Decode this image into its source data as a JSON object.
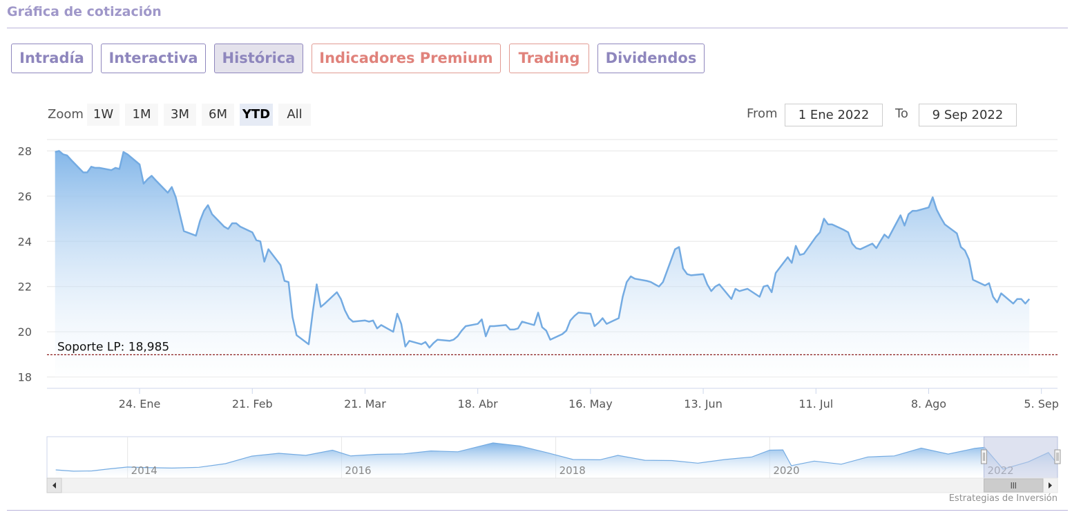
{
  "title": "Gráfica de cotización",
  "tabs": [
    {
      "label": "Intradía",
      "active": false,
      "color": "#8e86bd"
    },
    {
      "label": "Interactiva",
      "active": false,
      "color": "#8e86bd"
    },
    {
      "label": "Histórica",
      "active": true,
      "color": "#8e86bd"
    },
    {
      "label": "Indicadores Premium",
      "active": false,
      "color": "#e0827b"
    },
    {
      "label": "Trading",
      "active": false,
      "color": "#e0827b"
    },
    {
      "label": "Dividendos",
      "active": false,
      "color": "#8e86bd"
    }
  ],
  "zoom": {
    "label": "Zoom",
    "buttons": [
      "1W",
      "1M",
      "3M",
      "6M",
      "YTD",
      "All"
    ],
    "selected": "YTD"
  },
  "range": {
    "from_label": "From",
    "from_value": "1 Ene 2022",
    "to_label": "To",
    "to_value": "9 Sep 2022"
  },
  "credit": "Estrategias de Inversión",
  "colors": {
    "line": "#74abe2",
    "support_line": "#8b1a1a",
    "navigator_mask": "#c3cbe3"
  },
  "chart_data": {
    "type": "area",
    "x_start": "2022-01-01",
    "x_end": "2022-09-09",
    "ylim": [
      17.5,
      28.5
    ],
    "yticks": [
      18,
      20,
      22,
      24,
      26,
      28
    ],
    "xticks": [
      {
        "date": "2022-01-24",
        "label": "24. Ene"
      },
      {
        "date": "2022-02-21",
        "label": "21. Feb"
      },
      {
        "date": "2022-03-21",
        "label": "21. Mar"
      },
      {
        "date": "2022-04-18",
        "label": "18. Abr"
      },
      {
        "date": "2022-05-16",
        "label": "16. May"
      },
      {
        "date": "2022-06-13",
        "label": "13. Jun"
      },
      {
        "date": "2022-07-11",
        "label": "11. Jul"
      },
      {
        "date": "2022-08-08",
        "label": "8. Ago"
      },
      {
        "date": "2022-09-05",
        "label": "5. Sep"
      }
    ],
    "support": {
      "value": 18.985,
      "label": "Soporte LP: 18,985"
    },
    "series": [
      {
        "points": [
          [
            "2022-01-03",
            27.95
          ],
          [
            "2022-01-04",
            28.0
          ],
          [
            "2022-01-05",
            27.85
          ],
          [
            "2022-01-06",
            27.8
          ],
          [
            "2022-01-07",
            27.6
          ],
          [
            "2022-01-10",
            27.05
          ],
          [
            "2022-01-11",
            27.05
          ],
          [
            "2022-01-12",
            27.3
          ],
          [
            "2022-01-13",
            27.25
          ],
          [
            "2022-01-14",
            27.25
          ],
          [
            "2022-01-17",
            27.15
          ],
          [
            "2022-01-18",
            27.25
          ],
          [
            "2022-01-19",
            27.2
          ],
          [
            "2022-01-20",
            27.95
          ],
          [
            "2022-01-21",
            27.85
          ],
          [
            "2022-01-24",
            27.4
          ],
          [
            "2022-01-25",
            26.55
          ],
          [
            "2022-01-26",
            26.75
          ],
          [
            "2022-01-27",
            26.9
          ],
          [
            "2022-01-28",
            26.7
          ],
          [
            "2022-01-31",
            26.15
          ],
          [
            "2022-02-01",
            26.4
          ],
          [
            "2022-02-02",
            25.95
          ],
          [
            "2022-02-03",
            25.2
          ],
          [
            "2022-02-04",
            24.45
          ],
          [
            "2022-02-07",
            24.25
          ],
          [
            "2022-02-08",
            24.9
          ],
          [
            "2022-02-09",
            25.35
          ],
          [
            "2022-02-10",
            25.6
          ],
          [
            "2022-02-11",
            25.2
          ],
          [
            "2022-02-14",
            24.65
          ],
          [
            "2022-02-15",
            24.55
          ],
          [
            "2022-02-16",
            24.8
          ],
          [
            "2022-02-17",
            24.8
          ],
          [
            "2022-02-18",
            24.65
          ],
          [
            "2022-02-21",
            24.4
          ],
          [
            "2022-02-22",
            24.05
          ],
          [
            "2022-02-23",
            24.0
          ],
          [
            "2022-02-24",
            23.1
          ],
          [
            "2022-02-25",
            23.65
          ],
          [
            "2022-02-28",
            22.95
          ],
          [
            "2022-03-01",
            22.25
          ],
          [
            "2022-03-02",
            22.2
          ],
          [
            "2022-03-03",
            20.65
          ],
          [
            "2022-03-04",
            19.85
          ],
          [
            "2022-03-07",
            19.45
          ],
          [
            "2022-03-08",
            20.85
          ],
          [
            "2022-03-09",
            22.1
          ],
          [
            "2022-03-10",
            21.1
          ],
          [
            "2022-03-11",
            21.25
          ],
          [
            "2022-03-14",
            21.75
          ],
          [
            "2022-03-15",
            21.45
          ],
          [
            "2022-03-16",
            20.95
          ],
          [
            "2022-03-17",
            20.6
          ],
          [
            "2022-03-18",
            20.45
          ],
          [
            "2022-03-21",
            20.5
          ],
          [
            "2022-03-22",
            20.45
          ],
          [
            "2022-03-23",
            20.5
          ],
          [
            "2022-03-24",
            20.15
          ],
          [
            "2022-03-25",
            20.3
          ],
          [
            "2022-03-28",
            20.0
          ],
          [
            "2022-03-29",
            20.8
          ],
          [
            "2022-03-30",
            20.35
          ],
          [
            "2022-03-31",
            19.35
          ],
          [
            "2022-04-01",
            19.6
          ],
          [
            "2022-04-04",
            19.45
          ],
          [
            "2022-04-05",
            19.55
          ],
          [
            "2022-04-06",
            19.3
          ],
          [
            "2022-04-07",
            19.5
          ],
          [
            "2022-04-08",
            19.65
          ],
          [
            "2022-04-11",
            19.6
          ],
          [
            "2022-04-12",
            19.65
          ],
          [
            "2022-04-13",
            19.8
          ],
          [
            "2022-04-14",
            20.05
          ],
          [
            "2022-04-15",
            20.25
          ],
          [
            "2022-04-18",
            20.35
          ],
          [
            "2022-04-19",
            20.55
          ],
          [
            "2022-04-20",
            19.8
          ],
          [
            "2022-04-21",
            20.25
          ],
          [
            "2022-04-22",
            20.25
          ],
          [
            "2022-04-25",
            20.3
          ],
          [
            "2022-04-26",
            20.1
          ],
          [
            "2022-04-27",
            20.1
          ],
          [
            "2022-04-28",
            20.15
          ],
          [
            "2022-04-29",
            20.45
          ],
          [
            "2022-05-02",
            20.3
          ],
          [
            "2022-05-03",
            20.85
          ],
          [
            "2022-05-04",
            20.2
          ],
          [
            "2022-05-05",
            20.05
          ],
          [
            "2022-05-06",
            19.65
          ],
          [
            "2022-05-09",
            19.9
          ],
          [
            "2022-05-10",
            20.05
          ],
          [
            "2022-05-11",
            20.5
          ],
          [
            "2022-05-12",
            20.7
          ],
          [
            "2022-05-13",
            20.85
          ],
          [
            "2022-05-16",
            20.8
          ],
          [
            "2022-05-17",
            20.25
          ],
          [
            "2022-05-18",
            20.4
          ],
          [
            "2022-05-19",
            20.6
          ],
          [
            "2022-05-20",
            20.35
          ],
          [
            "2022-05-23",
            20.6
          ],
          [
            "2022-05-24",
            21.55
          ],
          [
            "2022-05-25",
            22.2
          ],
          [
            "2022-05-26",
            22.45
          ],
          [
            "2022-05-27",
            22.35
          ],
          [
            "2022-05-30",
            22.25
          ],
          [
            "2022-05-31",
            22.2
          ],
          [
            "2022-06-01",
            22.1
          ],
          [
            "2022-06-02",
            22.0
          ],
          [
            "2022-06-03",
            22.2
          ],
          [
            "2022-06-06",
            23.65
          ],
          [
            "2022-06-07",
            23.75
          ],
          [
            "2022-06-08",
            22.8
          ],
          [
            "2022-06-09",
            22.55
          ],
          [
            "2022-06-10",
            22.5
          ],
          [
            "2022-06-13",
            22.55
          ],
          [
            "2022-06-14",
            22.1
          ],
          [
            "2022-06-15",
            21.8
          ],
          [
            "2022-06-16",
            22.0
          ],
          [
            "2022-06-17",
            22.1
          ],
          [
            "2022-06-20",
            21.45
          ],
          [
            "2022-06-21",
            21.9
          ],
          [
            "2022-06-22",
            21.8
          ],
          [
            "2022-06-23",
            21.85
          ],
          [
            "2022-06-24",
            21.9
          ],
          [
            "2022-06-27",
            21.55
          ],
          [
            "2022-06-28",
            22.0
          ],
          [
            "2022-06-29",
            22.05
          ],
          [
            "2022-06-30",
            21.75
          ],
          [
            "2022-07-01",
            22.6
          ],
          [
            "2022-07-04",
            23.3
          ],
          [
            "2022-07-05",
            23.05
          ],
          [
            "2022-07-06",
            23.8
          ],
          [
            "2022-07-07",
            23.4
          ],
          [
            "2022-07-08",
            23.45
          ],
          [
            "2022-07-11",
            24.2
          ],
          [
            "2022-07-12",
            24.4
          ],
          [
            "2022-07-13",
            25.0
          ],
          [
            "2022-07-14",
            24.75
          ],
          [
            "2022-07-15",
            24.75
          ],
          [
            "2022-07-18",
            24.5
          ],
          [
            "2022-07-19",
            24.4
          ],
          [
            "2022-07-20",
            23.9
          ],
          [
            "2022-07-21",
            23.7
          ],
          [
            "2022-07-22",
            23.65
          ],
          [
            "2022-07-25",
            23.9
          ],
          [
            "2022-07-26",
            23.7
          ],
          [
            "2022-07-27",
            24.0
          ],
          [
            "2022-07-28",
            24.3
          ],
          [
            "2022-07-29",
            24.15
          ],
          [
            "2022-08-01",
            25.15
          ],
          [
            "2022-08-02",
            24.7
          ],
          [
            "2022-08-03",
            25.2
          ],
          [
            "2022-08-04",
            25.35
          ],
          [
            "2022-08-05",
            25.35
          ],
          [
            "2022-08-08",
            25.5
          ],
          [
            "2022-08-09",
            25.95
          ],
          [
            "2022-08-10",
            25.4
          ],
          [
            "2022-08-11",
            25.05
          ],
          [
            "2022-08-12",
            24.75
          ],
          [
            "2022-08-15",
            24.35
          ],
          [
            "2022-08-16",
            23.75
          ],
          [
            "2022-08-17",
            23.6
          ],
          [
            "2022-08-18",
            23.2
          ],
          [
            "2022-08-19",
            22.3
          ],
          [
            "2022-08-22",
            22.05
          ],
          [
            "2022-08-23",
            22.15
          ],
          [
            "2022-08-24",
            21.55
          ],
          [
            "2022-08-25",
            21.3
          ],
          [
            "2022-08-26",
            21.7
          ],
          [
            "2022-08-29",
            21.25
          ],
          [
            "2022-08-30",
            21.45
          ],
          [
            "2022-08-31",
            21.45
          ],
          [
            "2022-09-01",
            21.25
          ],
          [
            "2022-09-02",
            21.45
          ]
        ]
      }
    ],
    "navigator": {
      "year_labels": [
        {
          "date": "2014-01-01",
          "label": "2014"
        },
        {
          "date": "2016-01-01",
          "label": "2016"
        },
        {
          "date": "2018-01-01",
          "label": "2018"
        },
        {
          "date": "2020-01-01",
          "label": "2020"
        },
        {
          "date": "2022-01-01",
          "label": "2022"
        }
      ],
      "x_start": "2013-04-01",
      "x_end": "2022-09-09",
      "series": [
        [
          "2013-05-01",
          19.2
        ],
        [
          "2013-07-01",
          18.7
        ],
        [
          "2013-09-01",
          18.8
        ],
        [
          "2013-11-01",
          19.6
        ],
        [
          "2014-01-01",
          20.3
        ],
        [
          "2014-03-01",
          20.1
        ],
        [
          "2014-06-01",
          19.9
        ],
        [
          "2014-09-01",
          20.2
        ],
        [
          "2014-12-01",
          21.6
        ],
        [
          "2015-03-01",
          24.5
        ],
        [
          "2015-06-01",
          25.6
        ],
        [
          "2015-09-01",
          24.8
        ],
        [
          "2015-12-01",
          26.8
        ],
        [
          "2016-02-01",
          24.6
        ],
        [
          "2016-05-01",
          25.2
        ],
        [
          "2016-08-01",
          25.4
        ],
        [
          "2016-11-01",
          26.5
        ],
        [
          "2017-02-01",
          26.2
        ],
        [
          "2017-06-01",
          29.6
        ],
        [
          "2017-09-01",
          28.4
        ],
        [
          "2017-12-01",
          25.9
        ],
        [
          "2018-03-01",
          23.2
        ],
        [
          "2018-06-01",
          23.1
        ],
        [
          "2018-08-01",
          24.8
        ],
        [
          "2018-11-01",
          22.9
        ],
        [
          "2019-02-01",
          22.8
        ],
        [
          "2019-05-01",
          21.8
        ],
        [
          "2019-08-01",
          23.2
        ],
        [
          "2019-11-01",
          24.2
        ],
        [
          "2020-01-01",
          26.8
        ],
        [
          "2020-02-15",
          26.9
        ],
        [
          "2020-03-15",
          20.8
        ],
        [
          "2020-06-01",
          22.6
        ],
        [
          "2020-09-01",
          21.4
        ],
        [
          "2020-12-01",
          24.2
        ],
        [
          "2021-03-01",
          24.6
        ],
        [
          "2021-06-01",
          27.6
        ],
        [
          "2021-09-01",
          25.3
        ],
        [
          "2021-12-01",
          27.5
        ],
        [
          "2022-01-03",
          27.9
        ],
        [
          "2022-03-07",
          19.5
        ],
        [
          "2022-06-01",
          22.3
        ],
        [
          "2022-08-09",
          25.9
        ],
        [
          "2022-09-09",
          21.4
        ]
      ],
      "ylim": [
        16,
        32
      ]
    }
  }
}
